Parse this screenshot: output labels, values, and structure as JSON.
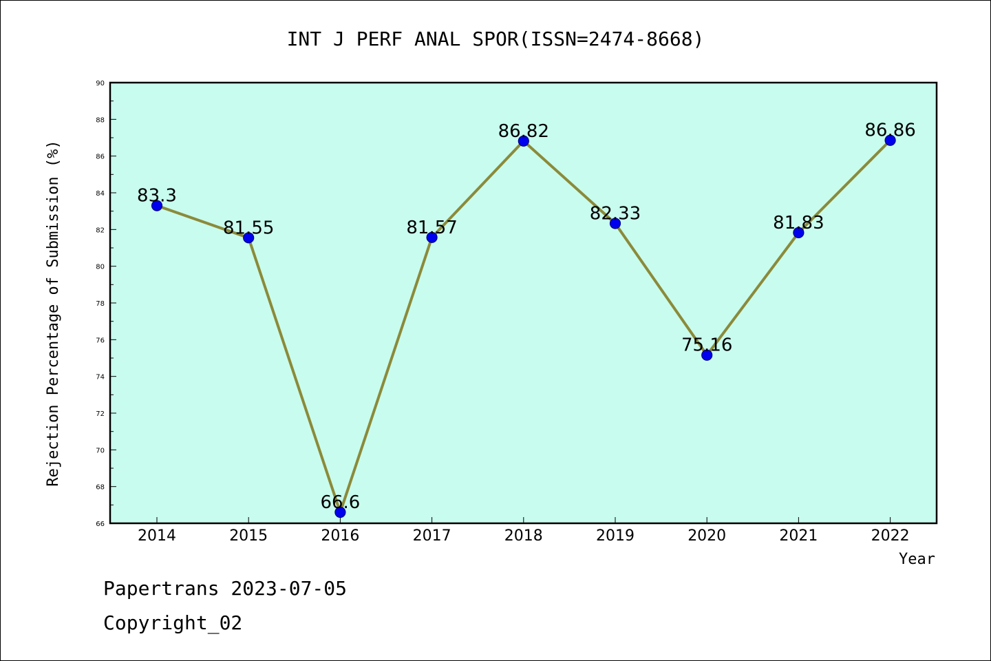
{
  "chart_data": {
    "type": "line",
    "title": "INT J PERF ANAL SPOR(ISSN=2474-8668)",
    "xlabel": "Year",
    "ylabel": "Rejection Percentage of Submission (%)",
    "categories": [
      "2014",
      "2015",
      "2016",
      "2017",
      "2018",
      "2019",
      "2020",
      "2021",
      "2022"
    ],
    "values": [
      83.3,
      81.55,
      66.6,
      81.57,
      86.82,
      82.33,
      75.16,
      81.83,
      86.86
    ],
    "data_labels": [
      "83.3",
      "81.55",
      "66.6",
      "81.57",
      "86.82",
      "82.33",
      "75.16",
      "81.83",
      "86.86"
    ],
    "ylim": [
      66,
      90
    ],
    "yticks": [
      66,
      68,
      70,
      72,
      74,
      76,
      78,
      80,
      82,
      84,
      86,
      88,
      90
    ],
    "grid": false,
    "legend": "none",
    "colors": {
      "plot_background": "#c8fcee",
      "line": "#8b8a3a",
      "marker": "#0000ee",
      "marker_edge": "#000080"
    }
  },
  "footer": {
    "line1": "Papertrans 2023-07-05",
    "line2": "Copyright_02"
  }
}
